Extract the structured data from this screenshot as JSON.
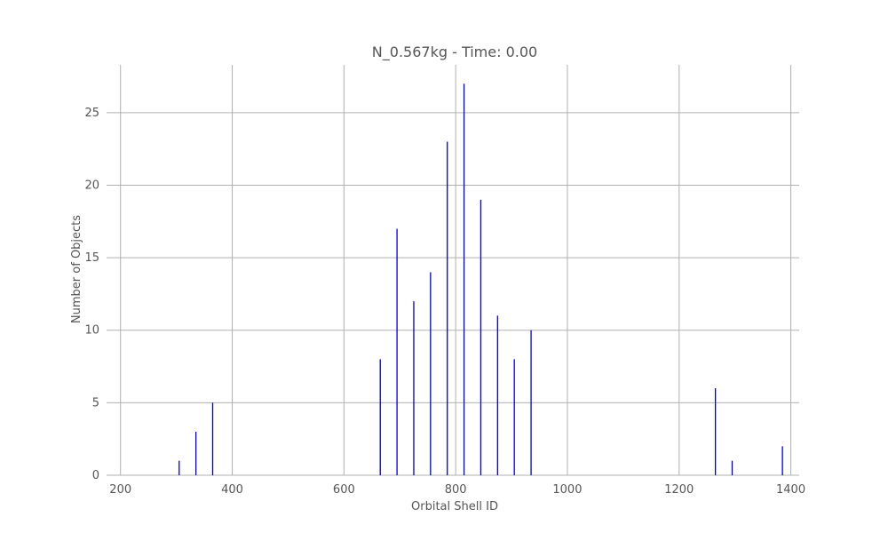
{
  "chart_data": {
    "type": "bar",
    "title": "N_0.567kg - Time: 0.00",
    "xlabel": "Orbital Shell ID",
    "ylabel": "Number of Objects",
    "xlim": [
      175,
      1415
    ],
    "ylim": [
      0,
      28.3
    ],
    "xticks": [
      200,
      400,
      600,
      800,
      1000,
      1200,
      1400
    ],
    "yticks": [
      0,
      5,
      10,
      15,
      20,
      25
    ],
    "grid": true,
    "bar_color": "#0000cc",
    "points": [
      {
        "x": 305,
        "y": 1
      },
      {
        "x": 335,
        "y": 3
      },
      {
        "x": 365,
        "y": 5
      },
      {
        "x": 665,
        "y": 8
      },
      {
        "x": 695,
        "y": 17
      },
      {
        "x": 725,
        "y": 12
      },
      {
        "x": 755,
        "y": 14
      },
      {
        "x": 785,
        "y": 23
      },
      {
        "x": 815,
        "y": 27
      },
      {
        "x": 845,
        "y": 19
      },
      {
        "x": 875,
        "y": 11
      },
      {
        "x": 905,
        "y": 8
      },
      {
        "x": 935,
        "y": 10
      },
      {
        "x": 1265,
        "y": 6
      },
      {
        "x": 1295,
        "y": 1
      },
      {
        "x": 1385,
        "y": 2
      }
    ]
  }
}
